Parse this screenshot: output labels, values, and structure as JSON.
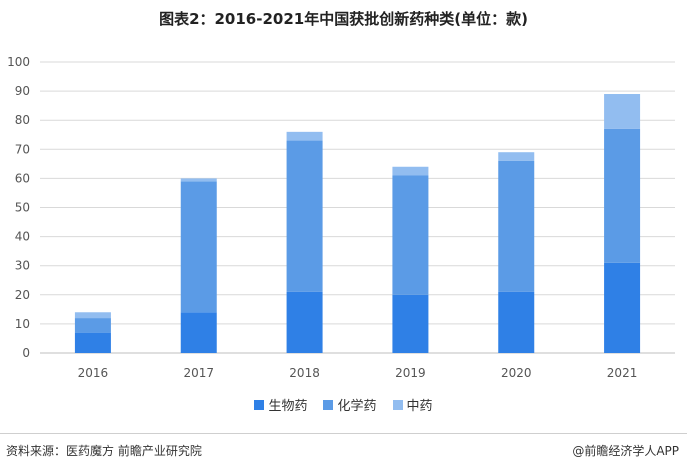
{
  "title": "图表2：2016-2021年中国获批创新药种类(单位：款)",
  "source": "资料来源：医药魔方 前瞻产业研究院",
  "brand": "@前瞻经济学人APP",
  "colors": {
    "生物药": "#2f80e6",
    "化学药": "#5b9be6",
    "中药": "#92bdf0"
  },
  "chart_data": {
    "type": "bar",
    "stacked": true,
    "categories": [
      "2016",
      "2017",
      "2018",
      "2019",
      "2020",
      "2021"
    ],
    "series": [
      {
        "name": "生物药",
        "values": [
          7,
          14,
          21,
          20,
          21,
          31
        ]
      },
      {
        "name": "化学药",
        "values": [
          5,
          45,
          52,
          41,
          45,
          46
        ]
      },
      {
        "name": "中药",
        "values": [
          2,
          1,
          3,
          3,
          3,
          12
        ]
      }
    ],
    "ylim": [
      0,
      100
    ],
    "yticks": [
      0,
      10,
      20,
      30,
      40,
      50,
      60,
      70,
      80,
      90,
      100
    ],
    "grid": true,
    "legend_position": "bottom"
  }
}
